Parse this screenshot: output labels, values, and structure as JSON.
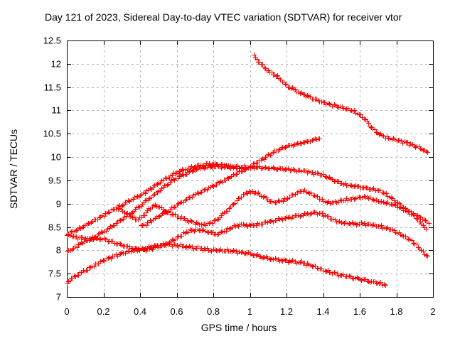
{
  "page": {
    "background": "#ffffff"
  },
  "chart_data": {
    "type": "scatter",
    "title": "Day 121 of 2023, Sidereal Day-to-day VTEC variation (SDTVAR) for receiver vtor",
    "xlabel": "GPS time / hours",
    "ylabel": "SDTVAR / TECUs",
    "xlim": [
      0,
      2
    ],
    "ylim": [
      7,
      12.5
    ],
    "xticks": {
      "values": [
        0,
        0.2,
        0.4,
        0.6,
        0.8,
        1,
        1.2,
        1.4,
        1.6,
        1.8,
        2
      ],
      "labels": [
        "0",
        "0.2",
        "0.4",
        "0.6",
        "0.8",
        "1",
        "1.2",
        "1.4",
        "1.6",
        "1.8",
        "2"
      ]
    },
    "yticks": {
      "values": [
        7,
        7.5,
        8,
        8.5,
        9,
        9.5,
        10,
        10.5,
        11,
        11.5,
        12,
        12.5
      ],
      "labels": [
        "7",
        "7.5",
        "8",
        "8.5",
        "9",
        "9.5",
        "10",
        "10.5",
        "11",
        "11.5",
        "12",
        "12.5"
      ]
    },
    "grid": true,
    "legend": "none",
    "marker": "plus",
    "marker_color": "#ff0000",
    "grid_color": "#b2b2b2",
    "axis_color": "#000000",
    "series": [
      {
        "name": "arc-1",
        "points": [
          [
            1.02,
            12.17
          ],
          [
            1.06,
            12.0
          ],
          [
            1.1,
            11.85
          ],
          [
            1.15,
            11.72
          ],
          [
            1.2,
            11.54
          ],
          [
            1.28,
            11.37
          ],
          [
            1.38,
            11.21
          ],
          [
            1.45,
            11.12
          ],
          [
            1.51,
            11.06
          ],
          [
            1.57,
            10.98
          ],
          [
            1.63,
            10.8
          ],
          [
            1.68,
            10.57
          ],
          [
            1.73,
            10.45
          ],
          [
            1.8,
            10.37
          ],
          [
            1.86,
            10.3
          ],
          [
            1.93,
            10.2
          ],
          [
            1.97,
            10.1
          ]
        ]
      },
      {
        "name": "arc-2",
        "points": [
          [
            0.404,
            8.52
          ],
          [
            0.48,
            8.69
          ],
          [
            0.57,
            8.9
          ],
          [
            0.676,
            9.15
          ],
          [
            0.75,
            9.3
          ],
          [
            0.865,
            9.52
          ],
          [
            0.95,
            9.7
          ],
          [
            1.05,
            9.92
          ],
          [
            1.16,
            10.17
          ],
          [
            1.25,
            10.28
          ],
          [
            1.33,
            10.35
          ],
          [
            1.38,
            10.41
          ]
        ]
      },
      {
        "name": "arc-3",
        "points": [
          [
            0.0,
            8.36
          ],
          [
            0.14,
            8.63
          ],
          [
            0.295,
            8.96
          ],
          [
            0.4,
            9.19
          ],
          [
            0.47,
            9.36
          ],
          [
            0.55,
            9.57
          ],
          [
            0.63,
            9.72
          ],
          [
            0.72,
            9.82
          ],
          [
            0.8,
            9.86
          ],
          [
            0.9,
            9.8
          ],
          [
            1.0,
            9.79
          ],
          [
            1.1,
            9.77
          ],
          [
            1.2,
            9.74
          ],
          [
            1.305,
            9.7
          ],
          [
            1.4,
            9.61
          ],
          [
            1.5,
            9.44
          ],
          [
            1.57,
            9.38
          ],
          [
            1.65,
            9.33
          ],
          [
            1.71,
            9.28
          ],
          [
            1.77,
            9.13
          ],
          [
            1.83,
            8.95
          ],
          [
            1.89,
            8.8
          ],
          [
            1.94,
            8.69
          ],
          [
            1.975,
            8.6
          ]
        ]
      },
      {
        "name": "arc-4",
        "points": [
          [
            0.0,
            7.98
          ],
          [
            0.07,
            8.14
          ],
          [
            0.148,
            8.29
          ],
          [
            0.22,
            8.46
          ],
          [
            0.3,
            8.67
          ],
          [
            0.38,
            8.9
          ],
          [
            0.46,
            9.15
          ],
          [
            0.54,
            9.4
          ],
          [
            0.62,
            9.6
          ],
          [
            0.7,
            9.73
          ],
          [
            0.78,
            9.8
          ],
          [
            0.86,
            9.8
          ],
          [
            0.95,
            9.77
          ],
          [
            1.0,
            9.76
          ]
        ]
      },
      {
        "name": "arc-5",
        "points": [
          [
            0.27,
            8.93
          ],
          [
            0.33,
            8.78
          ],
          [
            0.39,
            8.66
          ],
          [
            0.43,
            8.82
          ],
          [
            0.465,
            8.93
          ],
          [
            0.49,
            8.96
          ],
          [
            0.54,
            8.83
          ],
          [
            0.6,
            8.74
          ],
          [
            0.68,
            8.62
          ],
          [
            0.75,
            8.56
          ],
          [
            0.82,
            8.67
          ],
          [
            0.9,
            8.96
          ],
          [
            0.97,
            9.21
          ],
          [
            1.02,
            9.25
          ],
          [
            1.07,
            9.16
          ],
          [
            1.12,
            9.04
          ],
          [
            1.18,
            9.08
          ],
          [
            1.24,
            9.2
          ],
          [
            1.29,
            9.28
          ],
          [
            1.36,
            9.16
          ],
          [
            1.43,
            9.03
          ],
          [
            1.5,
            9.07
          ],
          [
            1.57,
            9.12
          ],
          [
            1.63,
            9.15
          ],
          [
            1.7,
            9.06
          ],
          [
            1.77,
            9.0
          ],
          [
            1.83,
            8.9
          ],
          [
            1.89,
            8.76
          ],
          [
            1.93,
            8.61
          ],
          [
            1.96,
            8.45
          ]
        ]
      },
      {
        "name": "arc-6",
        "points": [
          [
            0.0,
            7.33
          ],
          [
            0.063,
            7.5
          ],
          [
            0.12,
            7.62
          ],
          [
            0.199,
            7.79
          ],
          [
            0.3,
            7.94
          ],
          [
            0.394,
            8.02
          ],
          [
            0.47,
            8.09
          ],
          [
            0.55,
            8.16
          ],
          [
            0.61,
            8.3
          ],
          [
            0.67,
            8.42
          ],
          [
            0.73,
            8.44
          ],
          [
            0.78,
            8.39
          ],
          [
            0.81,
            8.35
          ],
          [
            0.86,
            8.42
          ],
          [
            0.92,
            8.53
          ],
          [
            0.97,
            8.56
          ],
          [
            1.0,
            8.54
          ],
          [
            1.05,
            8.57
          ],
          [
            1.12,
            8.64
          ],
          [
            1.2,
            8.7
          ],
          [
            1.28,
            8.76
          ],
          [
            1.36,
            8.81
          ],
          [
            1.42,
            8.73
          ],
          [
            1.48,
            8.62
          ],
          [
            1.55,
            8.58
          ],
          [
            1.63,
            8.57
          ],
          [
            1.7,
            8.53
          ],
          [
            1.76,
            8.46
          ],
          [
            1.83,
            8.33
          ],
          [
            1.9,
            8.15
          ],
          [
            1.97,
            7.88
          ]
        ]
      },
      {
        "name": "arc-7",
        "points": [
          [
            0.0,
            8.33
          ],
          [
            0.06,
            8.28
          ],
          [
            0.12,
            8.25
          ],
          [
            0.2,
            8.24
          ],
          [
            0.3,
            8.12
          ],
          [
            0.38,
            8.04
          ],
          [
            0.44,
            8.02
          ],
          [
            0.5,
            8.09
          ],
          [
            0.55,
            8.13
          ],
          [
            0.62,
            8.1
          ],
          [
            0.7,
            8.06
          ],
          [
            0.79,
            8.01
          ],
          [
            0.9,
            7.99
          ],
          [
            1.0,
            7.93
          ],
          [
            1.08,
            7.85
          ],
          [
            1.16,
            7.8
          ],
          [
            1.24,
            7.76
          ],
          [
            1.305,
            7.72
          ],
          [
            1.4,
            7.58
          ],
          [
            1.5,
            7.47
          ],
          [
            1.6,
            7.39
          ],
          [
            1.68,
            7.32
          ],
          [
            1.74,
            7.27
          ]
        ]
      }
    ]
  }
}
